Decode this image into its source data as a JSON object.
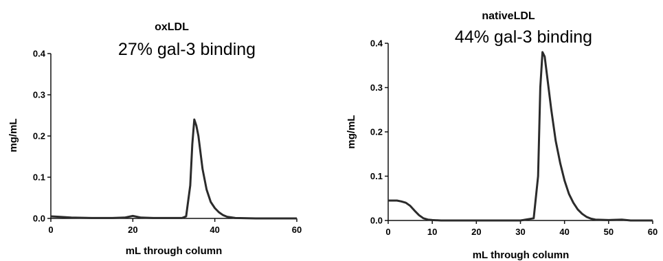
{
  "chart_data": [
    {
      "type": "line",
      "title": "oxLDL",
      "subtitle": "27% gal-3 binding",
      "xlabel": "mL through column",
      "ylabel": "mg/mL",
      "xlim": [
        0,
        60
      ],
      "ylim": [
        0,
        0.4
      ],
      "xticks": [
        "0",
        "20",
        "40",
        "60"
      ],
      "yticks": [
        "0.0",
        "0.1",
        "0.2",
        "0.3",
        "0.4"
      ],
      "grid": false,
      "x": [
        0,
        2,
        5,
        10,
        15,
        18,
        20,
        22,
        25,
        30,
        32,
        33,
        34,
        34.5,
        35,
        35.5,
        36,
        36.5,
        37,
        38,
        39,
        40,
        41,
        42,
        43,
        45,
        50,
        55,
        60
      ],
      "y": [
        0.005,
        0.004,
        0.002,
        0.001,
        0.001,
        0.002,
        0.006,
        0.002,
        0.001,
        0.001,
        0.001,
        0.005,
        0.08,
        0.18,
        0.24,
        0.225,
        0.2,
        0.16,
        0.12,
        0.07,
        0.04,
        0.025,
        0.015,
        0.008,
        0.004,
        0.001,
        0.0,
        0.0,
        0.0
      ]
    },
    {
      "type": "line",
      "title": "nativeLDL",
      "subtitle": "44% gal-3 binding",
      "xlabel": "mL through column",
      "ylabel": "mg/mL",
      "xlim": [
        0,
        60
      ],
      "ylim": [
        0,
        0.4
      ],
      "xticks": [
        "0",
        "10",
        "20",
        "30",
        "40",
        "50",
        "60"
      ],
      "yticks": [
        "0.0",
        "0.1",
        "0.2",
        "0.3",
        "0.4"
      ],
      "grid": false,
      "x": [
        0,
        1,
        2,
        3,
        4,
        5,
        6,
        7,
        8,
        9,
        10,
        12,
        15,
        20,
        25,
        30,
        33,
        34,
        34.5,
        35,
        35.5,
        36,
        37,
        38,
        39,
        40,
        41,
        42,
        43,
        44,
        45,
        46,
        47,
        50,
        53,
        55,
        60
      ],
      "y": [
        0.045,
        0.045,
        0.045,
        0.043,
        0.04,
        0.033,
        0.022,
        0.012,
        0.005,
        0.002,
        0.001,
        0.0,
        0.0,
        0.0,
        0.0,
        0.0,
        0.005,
        0.1,
        0.3,
        0.38,
        0.37,
        0.33,
        0.25,
        0.18,
        0.13,
        0.09,
        0.06,
        0.04,
        0.025,
        0.015,
        0.008,
        0.004,
        0.002,
        0.001,
        0.002,
        0.0,
        0.0
      ]
    }
  ]
}
